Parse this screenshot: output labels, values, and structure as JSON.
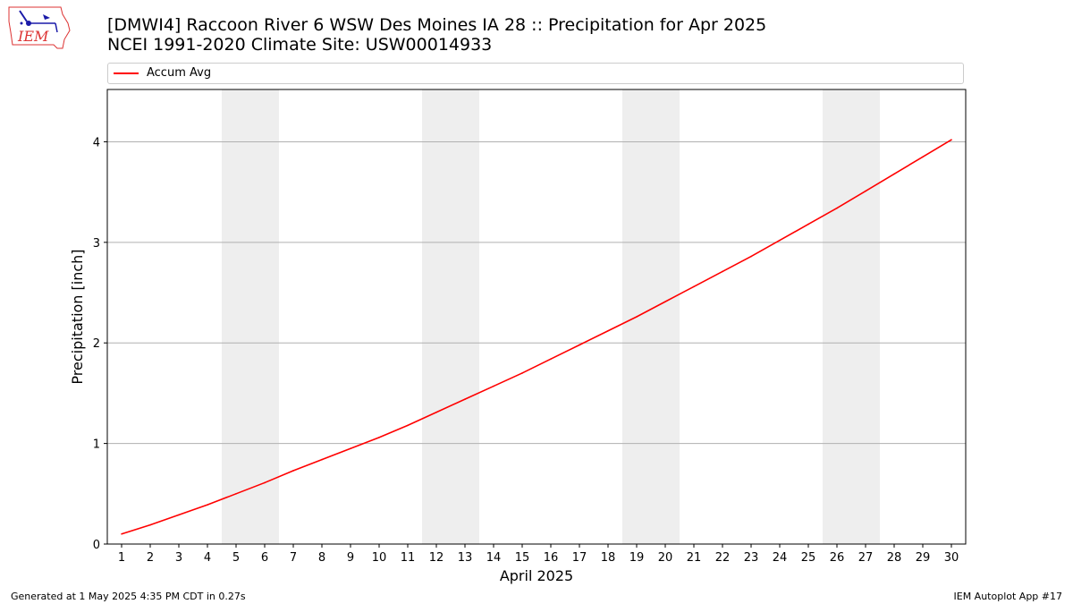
{
  "header": {
    "title_line1": "[DMWI4] Raccoon River 6 WSW Des Moines IA 28 :: Precipitation for Apr 2025",
    "title_line2": "NCEI 1991-2020 Climate Site: USW00014933",
    "logo_text": "IEM"
  },
  "legend": {
    "label": "Accum Avg",
    "color": "#ff0000"
  },
  "footer": {
    "left": "Generated at 1 May 2025 4:35 PM CDT in 0.27s",
    "right": "IEM Autoplot App #17"
  },
  "chart_data": {
    "type": "line",
    "xlabel": "April 2025",
    "ylabel": "Precipitation [inch]",
    "xlim": [
      0.5,
      30.5
    ],
    "ylim": [
      0,
      4.52
    ],
    "yticks": [
      0,
      1,
      2,
      3,
      4
    ],
    "grid": "horizontal",
    "legend_position": "top",
    "weekend_shading": [
      [
        4.5,
        6.5
      ],
      [
        11.5,
        13.5
      ],
      [
        18.5,
        20.5
      ],
      [
        25.5,
        27.5
      ]
    ],
    "shade_color": "#eeeeee",
    "x": [
      1,
      2,
      3,
      4,
      5,
      6,
      7,
      8,
      9,
      10,
      11,
      12,
      13,
      14,
      15,
      16,
      17,
      18,
      19,
      20,
      21,
      22,
      23,
      24,
      25,
      26,
      27,
      28,
      29,
      30
    ],
    "series": [
      {
        "name": "Accum Avg",
        "color": "#ff0000",
        "values": [
          0.1,
          0.19,
          0.29,
          0.39,
          0.5,
          0.61,
          0.73,
          0.84,
          0.95,
          1.06,
          1.18,
          1.31,
          1.44,
          1.57,
          1.7,
          1.84,
          1.98,
          2.12,
          2.26,
          2.41,
          2.56,
          2.71,
          2.86,
          3.02,
          3.18,
          3.34,
          3.51,
          3.68,
          3.85,
          4.02
        ]
      }
    ]
  }
}
